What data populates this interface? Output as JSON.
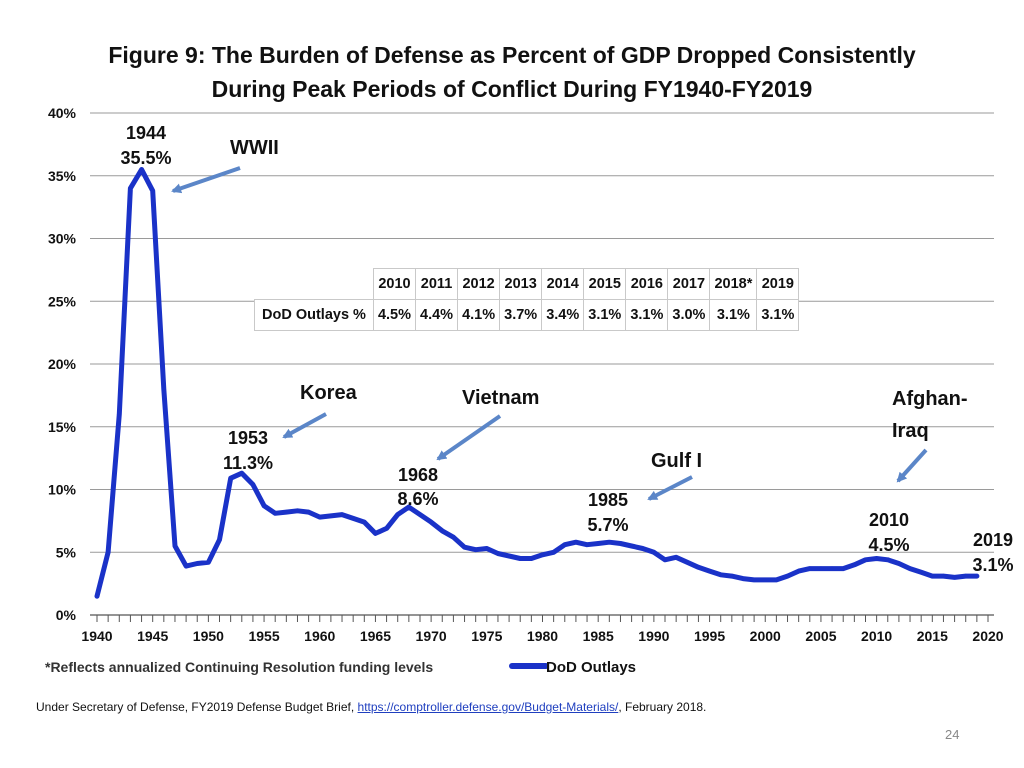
{
  "title": {
    "line1": "Figure 9: The Burden of Defense as Percent of GDP Dropped Consistently",
    "line2": "During Peak Periods of Conflict During FY1940-FY2019"
  },
  "chart_data": {
    "type": "line",
    "title": "Figure 9: The Burden of Defense as Percent of GDP Dropped Consistently During Peak Periods of Conflict During FY1940-FY2019",
    "xlabel": "",
    "ylabel": "",
    "xlim": [
      1940,
      2020
    ],
    "ylim": [
      0,
      40
    ],
    "x_ticks": [
      "1940",
      "1945",
      "1950",
      "1955",
      "1960",
      "1965",
      "1970",
      "1975",
      "1980",
      "1985",
      "1990",
      "1995",
      "2000",
      "2005",
      "2010",
      "2015",
      "2020"
    ],
    "y_ticks": [
      "0%",
      "5%",
      "10%",
      "15%",
      "20%",
      "25%",
      "30%",
      "35%",
      "40%"
    ],
    "grid": true,
    "legend": {
      "position": "bottom-center",
      "entries": [
        "DoD Outlays"
      ]
    },
    "series": [
      {
        "name": "DoD Outlays",
        "color": "#1a32c8",
        "points": [
          [
            1940,
            1.5
          ],
          [
            1941,
            5.0
          ],
          [
            1942,
            16.0
          ],
          [
            1943,
            34.0
          ],
          [
            1944,
            35.5
          ],
          [
            1945,
            33.8
          ],
          [
            1946,
            18.0
          ],
          [
            1947,
            5.5
          ],
          [
            1948,
            3.9
          ],
          [
            1949,
            4.1
          ],
          [
            1950,
            4.2
          ],
          [
            1951,
            6.0
          ],
          [
            1952,
            10.9
          ],
          [
            1953,
            11.3
          ],
          [
            1954,
            10.4
          ],
          [
            1955,
            8.7
          ],
          [
            1956,
            8.1
          ],
          [
            1957,
            8.2
          ],
          [
            1958,
            8.3
          ],
          [
            1959,
            8.2
          ],
          [
            1960,
            7.8
          ],
          [
            1961,
            7.9
          ],
          [
            1962,
            8.0
          ],
          [
            1963,
            7.7
          ],
          [
            1964,
            7.4
          ],
          [
            1965,
            6.5
          ],
          [
            1966,
            6.9
          ],
          [
            1967,
            8.0
          ],
          [
            1968,
            8.6
          ],
          [
            1969,
            8.0
          ],
          [
            1970,
            7.4
          ],
          [
            1971,
            6.7
          ],
          [
            1972,
            6.2
          ],
          [
            1973,
            5.4
          ],
          [
            1974,
            5.2
          ],
          [
            1975,
            5.3
          ],
          [
            1976,
            4.9
          ],
          [
            1977,
            4.7
          ],
          [
            1978,
            4.5
          ],
          [
            1979,
            4.5
          ],
          [
            1980,
            4.8
          ],
          [
            1981,
            5.0
          ],
          [
            1982,
            5.6
          ],
          [
            1983,
            5.8
          ],
          [
            1984,
            5.6
          ],
          [
            1985,
            5.7
          ],
          [
            1986,
            5.8
          ],
          [
            1987,
            5.7
          ],
          [
            1988,
            5.5
          ],
          [
            1989,
            5.3
          ],
          [
            1990,
            5.0
          ],
          [
            1991,
            4.4
          ],
          [
            1992,
            4.6
          ],
          [
            1993,
            4.2
          ],
          [
            1994,
            3.8
          ],
          [
            1995,
            3.5
          ],
          [
            1996,
            3.2
          ],
          [
            1997,
            3.1
          ],
          [
            1998,
            2.9
          ],
          [
            1999,
            2.8
          ],
          [
            2000,
            2.8
          ],
          [
            2001,
            2.8
          ],
          [
            2002,
            3.1
          ],
          [
            2003,
            3.5
          ],
          [
            2004,
            3.7
          ],
          [
            2005,
            3.7
          ],
          [
            2006,
            3.7
          ],
          [
            2007,
            3.7
          ],
          [
            2008,
            4.0
          ],
          [
            2009,
            4.4
          ],
          [
            2010,
            4.5
          ],
          [
            2011,
            4.4
          ],
          [
            2012,
            4.1
          ],
          [
            2013,
            3.7
          ],
          [
            2014,
            3.4
          ],
          [
            2015,
            3.1
          ],
          [
            2016,
            3.1
          ],
          [
            2017,
            3.0
          ],
          [
            2018,
            3.1
          ],
          [
            2019,
            3.1
          ]
        ]
      }
    ],
    "annotations": [
      {
        "year_label": "1944",
        "value_label": "35.5%"
      },
      {
        "year_label": "1953",
        "value_label": "11.3%"
      },
      {
        "year_label": "1968",
        "value_label": "8.6%"
      },
      {
        "year_label": "1985",
        "value_label": "5.7%"
      },
      {
        "year_label": "2010",
        "value_label": "4.5%"
      },
      {
        "year_label": "2019",
        "value_label": "3.1%"
      }
    ],
    "conflicts": [
      {
        "label": "WWII"
      },
      {
        "label": "Korea"
      },
      {
        "label": "Vietnam"
      },
      {
        "label": "Gulf I"
      },
      {
        "label": "Afghan-\nIraq"
      }
    ],
    "footnote": "*Reflects annualized Continuing Resolution funding levels",
    "inset_table": {
      "row_label": "DoD  Outlays %",
      "years": [
        "2010",
        "2011",
        "2012",
        "2013",
        "2014",
        "2015",
        "2016",
        "2017",
        "2018*",
        "2019"
      ],
      "values": [
        "4.5%",
        "4.4%",
        "4.1%",
        "3.7%",
        "3.4%",
        "3.1%",
        "3.1%",
        "3.0%",
        "3.1%",
        "3.1%"
      ]
    }
  },
  "source": {
    "prefix": "Under Secretary of Defense, FY2019 Defense Budget Brief, ",
    "link_text": "https://comptroller.defense.gov/Budget-Materials/",
    "suffix": ", February 2018."
  },
  "page_number": "24"
}
